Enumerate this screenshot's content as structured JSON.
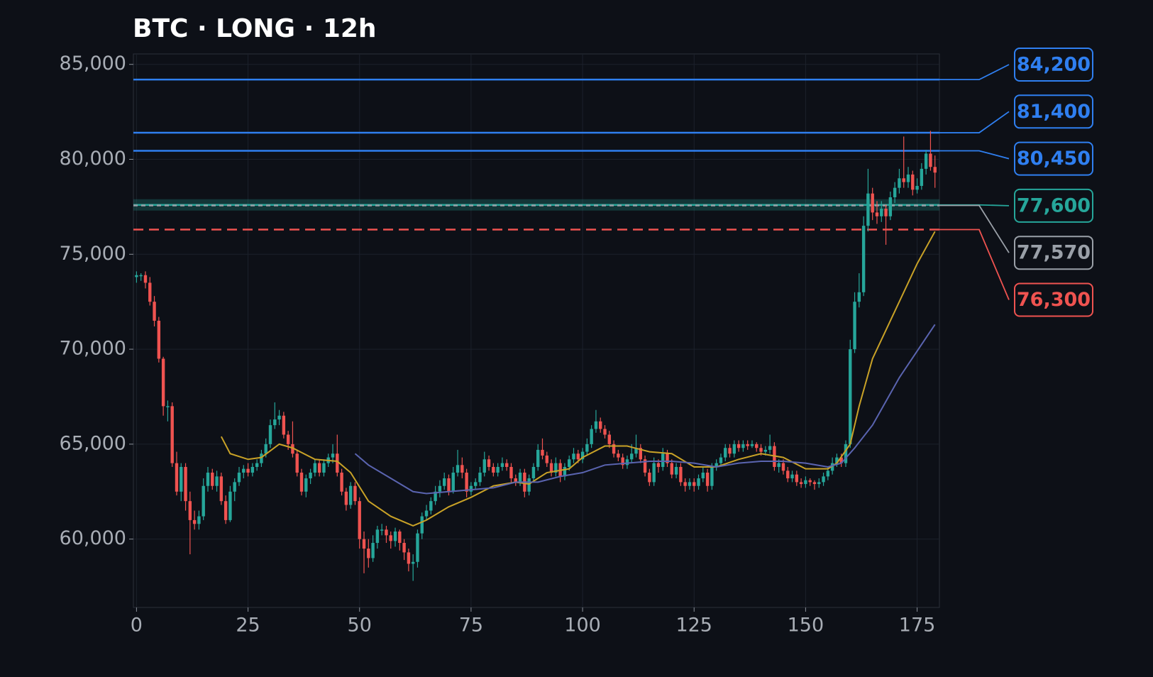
{
  "chart_data": {
    "type": "candlestick",
    "title": "BTC · LONG · 12h",
    "xlim": [
      -0.7,
      180
    ],
    "xticks": [
      0,
      25,
      50,
      75,
      100,
      125,
      150,
      175
    ],
    "ylim": [
      56400,
      85550
    ],
    "yticks": [
      {
        "value": 60000,
        "label": "60,000"
      },
      {
        "value": 65000,
        "label": "65,000"
      },
      {
        "value": 70000,
        "label": "70,000"
      },
      {
        "value": 75000,
        "label": "75,000"
      },
      {
        "value": 80000,
        "label": "80,000"
      },
      {
        "value": 85000,
        "label": "85,000"
      }
    ],
    "grid": true,
    "up_color": "#26a69a",
    "down_color": "#ef5350",
    "candles": [
      [
        73800,
        74100,
        73500,
        73900
      ],
      [
        73900,
        74000,
        73600,
        73900
      ],
      [
        73900,
        74100,
        73200,
        73500
      ],
      [
        73500,
        73800,
        72300,
        72500
      ],
      [
        72500,
        72800,
        71200,
        71500
      ],
      [
        71500,
        71700,
        69300,
        69500
      ],
      [
        69500,
        69600,
        66500,
        67000
      ],
      [
        67000,
        67300,
        66200,
        67000
      ],
      [
        67000,
        67200,
        63800,
        64000
      ],
      [
        64000,
        64600,
        62300,
        62500
      ],
      [
        62500,
        64000,
        62000,
        63800
      ],
      [
        63800,
        64000,
        61500,
        62000
      ],
      [
        62000,
        62500,
        59200,
        61000
      ],
      [
        61000,
        61500,
        60500,
        60800
      ],
      [
        60800,
        61500,
        60500,
        61200
      ],
      [
        61200,
        63200,
        61000,
        62800
      ],
      [
        62800,
        63800,
        62500,
        63500
      ],
      [
        63500,
        63700,
        62600,
        62800
      ],
      [
        62800,
        63600,
        62500,
        63300
      ],
      [
        63300,
        63500,
        61800,
        62000
      ],
      [
        62000,
        62300,
        60800,
        61000
      ],
      [
        61000,
        62800,
        60900,
        62500
      ],
      [
        62500,
        63200,
        62000,
        63000
      ],
      [
        63000,
        63800,
        62800,
        63500
      ],
      [
        63500,
        63900,
        63200,
        63700
      ],
      [
        63700,
        64000,
        63300,
        63500
      ],
      [
        63500,
        64000,
        63300,
        63800
      ],
      [
        63800,
        64200,
        63600,
        64000
      ],
      [
        64000,
        64700,
        63800,
        64500
      ],
      [
        64500,
        65300,
        64300,
        65000
      ],
      [
        65000,
        66300,
        64800,
        66000
      ],
      [
        66000,
        67200,
        65800,
        66300
      ],
      [
        66300,
        66800,
        66000,
        66500
      ],
      [
        66500,
        66700,
        65300,
        65500
      ],
      [
        65500,
        65700,
        64700,
        65000
      ],
      [
        65000,
        66200,
        64300,
        64500
      ],
      [
        64500,
        64700,
        63300,
        63500
      ],
      [
        63500,
        63700,
        62300,
        62500
      ],
      [
        62500,
        63400,
        62200,
        63200
      ],
      [
        63200,
        63700,
        62900,
        63500
      ],
      [
        63500,
        64200,
        63300,
        64000
      ],
      [
        64000,
        64200,
        63300,
        63500
      ],
      [
        63500,
        64200,
        63300,
        64000
      ],
      [
        64000,
        64500,
        63800,
        64300
      ],
      [
        64300,
        65000,
        64000,
        64500
      ],
      [
        64500,
        65500,
        63300,
        63500
      ],
      [
        63500,
        63700,
        62300,
        62500
      ],
      [
        62500,
        62700,
        61500,
        61800
      ],
      [
        61800,
        63000,
        61600,
        62800
      ],
      [
        62800,
        63000,
        61800,
        62000
      ],
      [
        62000,
        62200,
        59500,
        60000
      ],
      [
        60000,
        60400,
        58200,
        59500
      ],
      [
        59500,
        60000,
        58500,
        59000
      ],
      [
        59000,
        60200,
        58800,
        59800
      ],
      [
        59800,
        60700,
        59500,
        60500
      ],
      [
        60500,
        60800,
        60200,
        60500
      ],
      [
        60500,
        60700,
        59800,
        60200
      ],
      [
        60200,
        60400,
        59500,
        59900
      ],
      [
        59900,
        60600,
        59600,
        60400
      ],
      [
        60400,
        60500,
        59400,
        59800
      ],
      [
        59800,
        60000,
        58900,
        59300
      ],
      [
        59300,
        59500,
        58300,
        58700
      ],
      [
        58700,
        59200,
        57800,
        58800
      ],
      [
        58800,
        60500,
        58500,
        60300
      ],
      [
        60300,
        61400,
        60000,
        61200
      ],
      [
        61200,
        61800,
        61000,
        61500
      ],
      [
        61500,
        62200,
        61300,
        62000
      ],
      [
        62000,
        62800,
        61800,
        62500
      ],
      [
        62500,
        63100,
        62200,
        62800
      ],
      [
        62800,
        63500,
        62600,
        63200
      ],
      [
        63200,
        63400,
        62300,
        62500
      ],
      [
        62500,
        63800,
        62400,
        63500
      ],
      [
        63500,
        64700,
        63300,
        63900
      ],
      [
        63900,
        64300,
        63200,
        63500
      ],
      [
        63500,
        63700,
        62200,
        62500
      ],
      [
        62500,
        63000,
        62300,
        62800
      ],
      [
        62800,
        63200,
        62600,
        63000
      ],
      [
        63000,
        63800,
        62800,
        63500
      ],
      [
        63500,
        64600,
        63300,
        64200
      ],
      [
        64200,
        64400,
        63600,
        63800
      ],
      [
        63800,
        64000,
        63300,
        63500
      ],
      [
        63500,
        64000,
        63300,
        63800
      ],
      [
        63800,
        64300,
        63600,
        64000
      ],
      [
        64000,
        64200,
        63600,
        63800
      ],
      [
        63800,
        64000,
        63000,
        63200
      ],
      [
        63200,
        63400,
        62800,
        63000
      ],
      [
        63000,
        63700,
        62800,
        63500
      ],
      [
        63500,
        63700,
        62200,
        62500
      ],
      [
        62500,
        63400,
        62300,
        63200
      ],
      [
        63200,
        64000,
        63000,
        63800
      ],
      [
        63800,
        65000,
        63600,
        64700
      ],
      [
        64700,
        65300,
        64200,
        64400
      ],
      [
        64400,
        64600,
        63800,
        64000
      ],
      [
        64000,
        64200,
        63300,
        63500
      ],
      [
        63500,
        64300,
        63300,
        64000
      ],
      [
        64000,
        64200,
        63000,
        63300
      ],
      [
        63300,
        64000,
        63100,
        63800
      ],
      [
        63800,
        64400,
        63600,
        64200
      ],
      [
        64200,
        64800,
        64000,
        64500
      ],
      [
        64500,
        64700,
        64000,
        64200
      ],
      [
        64200,
        64800,
        64000,
        64600
      ],
      [
        64600,
        65300,
        64400,
        65000
      ],
      [
        65000,
        66000,
        64800,
        65800
      ],
      [
        65800,
        66800,
        65600,
        66200
      ],
      [
        66200,
        66400,
        65600,
        65800
      ],
      [
        65800,
        66000,
        65300,
        65500
      ],
      [
        65500,
        65700,
        64800,
        65000
      ],
      [
        65000,
        65200,
        64300,
        64500
      ],
      [
        64500,
        64700,
        64100,
        64300
      ],
      [
        64300,
        64500,
        63700,
        63900
      ],
      [
        63900,
        64400,
        63700,
        64200
      ],
      [
        64200,
        65000,
        64000,
        64500
      ],
      [
        64500,
        65500,
        64300,
        64800
      ],
      [
        64800,
        65000,
        64000,
        64200
      ],
      [
        64200,
        64400,
        63300,
        63500
      ],
      [
        63500,
        63700,
        62800,
        63000
      ],
      [
        63000,
        64300,
        62800,
        64000
      ],
      [
        64000,
        64200,
        63500,
        63800
      ],
      [
        63800,
        64800,
        63600,
        64500
      ],
      [
        64500,
        64700,
        63800,
        64000
      ],
      [
        64000,
        64200,
        63200,
        63400
      ],
      [
        63400,
        64000,
        63200,
        63800
      ],
      [
        63800,
        64000,
        62800,
        63000
      ],
      [
        63000,
        63200,
        62500,
        62800
      ],
      [
        62800,
        63200,
        62600,
        63000
      ],
      [
        63000,
        63200,
        62500,
        62800
      ],
      [
        62800,
        63400,
        62600,
        63200
      ],
      [
        63200,
        63800,
        63000,
        63500
      ],
      [
        63500,
        63700,
        62500,
        62800
      ],
      [
        62800,
        64000,
        62600,
        63800
      ],
      [
        63800,
        64200,
        63600,
        64000
      ],
      [
        64000,
        64500,
        63800,
        64300
      ],
      [
        64300,
        65000,
        64100,
        64800
      ],
      [
        64800,
        65000,
        64300,
        64500
      ],
      [
        64500,
        65200,
        64300,
        65000
      ],
      [
        65000,
        65200,
        64600,
        64800
      ],
      [
        64800,
        65200,
        64600,
        65000
      ],
      [
        65000,
        65200,
        64700,
        64900
      ],
      [
        64900,
        65200,
        64800,
        65000
      ],
      [
        65000,
        65100,
        64600,
        64800
      ],
      [
        64800,
        65000,
        64400,
        64600
      ],
      [
        64600,
        64900,
        64400,
        64700
      ],
      [
        64700,
        65500,
        64500,
        64900
      ],
      [
        64900,
        65100,
        63600,
        63800
      ],
      [
        63800,
        64200,
        63500,
        64000
      ],
      [
        64000,
        64200,
        63400,
        63600
      ],
      [
        63600,
        63800,
        63000,
        63200
      ],
      [
        63200,
        63600,
        63000,
        63400
      ],
      [
        63400,
        63600,
        62800,
        63000
      ],
      [
        63000,
        63200,
        62700,
        62900
      ],
      [
        62900,
        63300,
        62700,
        63100
      ],
      [
        63100,
        63200,
        62800,
        63000
      ],
      [
        63000,
        63100,
        62600,
        62900
      ],
      [
        62900,
        63200,
        62700,
        63000
      ],
      [
        63000,
        63500,
        62800,
        63300
      ],
      [
        63300,
        63800,
        63100,
        63600
      ],
      [
        63600,
        64300,
        63400,
        64000
      ],
      [
        64000,
        64500,
        63800,
        64300
      ],
      [
        64300,
        64500,
        63800,
        64000
      ],
      [
        64000,
        65200,
        63800,
        65000
      ],
      [
        65000,
        70500,
        64800,
        70000
      ],
      [
        70000,
        73000,
        69800,
        72500
      ],
      [
        72500,
        74000,
        72200,
        73000
      ],
      [
        73000,
        77000,
        72800,
        76500
      ],
      [
        76500,
        79500,
        76200,
        78200
      ],
      [
        78200,
        78500,
        76800,
        77200
      ],
      [
        77200,
        77800,
        76600,
        77000
      ],
      [
        77000,
        77800,
        76700,
        77400
      ],
      [
        77400,
        77600,
        75500,
        77000
      ],
      [
        77000,
        78300,
        76800,
        78000
      ],
      [
        78000,
        78800,
        77700,
        78500
      ],
      [
        78500,
        79500,
        78200,
        79000
      ],
      [
        79000,
        81200,
        78500,
        78800
      ],
      [
        78800,
        79600,
        78500,
        79200
      ],
      [
        79200,
        79400,
        78100,
        78400
      ],
      [
        78400,
        79000,
        78200,
        78600
      ],
      [
        78600,
        79800,
        78400,
        79500
      ],
      [
        79500,
        80500,
        79200,
        80300
      ],
      [
        80300,
        81500,
        79400,
        79600
      ],
      [
        79600,
        80200,
        78500,
        79300
      ]
    ],
    "lines": [
      {
        "color": "#c9a227",
        "x": [
          19,
          21,
          25,
          28,
          32,
          35,
          40,
          45,
          48,
          52,
          57,
          62,
          65,
          70,
          75,
          80,
          85,
          88,
          92,
          97,
          100,
          105,
          110,
          115,
          120,
          125,
          130,
          135,
          140,
          145,
          150,
          155,
          157,
          160,
          162,
          165,
          170,
          175,
          179
        ],
        "values": [
          65400,
          64500,
          64200,
          64300,
          65000,
          64800,
          64200,
          64100,
          63500,
          62000,
          61200,
          60700,
          61000,
          61700,
          62200,
          62800,
          63000,
          62900,
          63500,
          63700,
          64300,
          64900,
          64900,
          64600,
          64500,
          63800,
          63800,
          64200,
          64500,
          64300,
          63700,
          63700,
          64000,
          65000,
          67000,
          69500,
          72000,
          74500,
          76200
        ]
      },
      {
        "color": "#5a64b0",
        "x": [
          49,
          52,
          57,
          62,
          65,
          70,
          75,
          80,
          85,
          90,
          95,
          100,
          105,
          110,
          115,
          120,
          125,
          130,
          135,
          140,
          145,
          150,
          155,
          158,
          161,
          165,
          171,
          179
        ],
        "values": [
          64500,
          63900,
          63200,
          62500,
          62400,
          62500,
          62600,
          62700,
          63000,
          63000,
          63300,
          63500,
          63900,
          64000,
          64100,
          64100,
          64000,
          63800,
          64000,
          64100,
          64100,
          64000,
          63800,
          64000,
          64800,
          66000,
          68500,
          71300
        ]
      }
    ],
    "levels": [
      {
        "value": 84200,
        "label": "84,200",
        "color": "#2f7ff0",
        "style": "solid"
      },
      {
        "value": 81400,
        "label": "81,400",
        "color": "#2f7ff0",
        "style": "solid"
      },
      {
        "value": 80450,
        "label": "80,450",
        "color": "#2f7ff0",
        "style": "solid"
      },
      {
        "value": 77600,
        "label": "77,600",
        "color": "#26a69a",
        "style": "band"
      },
      {
        "value": 77570,
        "label": "77,570",
        "color": "#9aa0a8",
        "style": "dashed"
      },
      {
        "value": 76300,
        "label": "76,300",
        "color": "#ef5350",
        "style": "dashed"
      }
    ]
  }
}
